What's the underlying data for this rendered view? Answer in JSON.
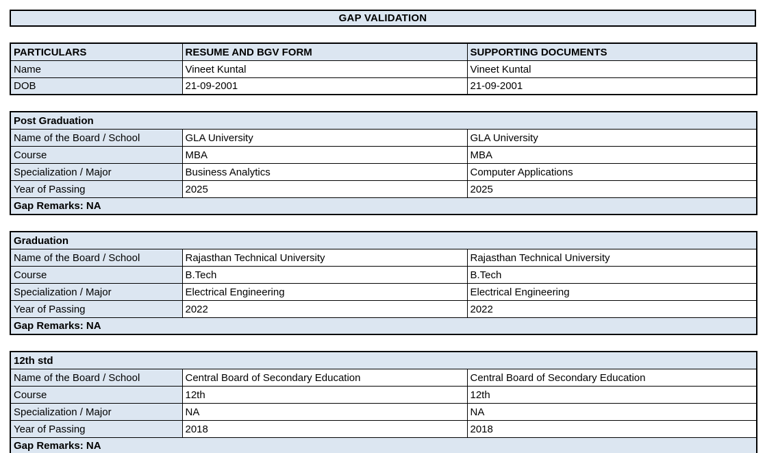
{
  "title": "GAP VALIDATION",
  "colors": {
    "shaded_cell_bg": "#dce6f1",
    "border": "#000000",
    "text": "#000000"
  },
  "main_table": {
    "columns": {
      "particulars": "PARTICULARS",
      "resume": "RESUME AND BGV FORM",
      "supporting": "SUPPORTING DOCUMENTS"
    },
    "rows": [
      {
        "label": "Name",
        "resume": "Vineet Kuntal",
        "supporting": "Vineet Kuntal"
      },
      {
        "label": "DOB",
        "resume": "21-09-2001",
        "supporting": "21-09-2001"
      }
    ]
  },
  "sections": [
    {
      "header": "Post Graduation",
      "rows": [
        {
          "label": "Name of the Board / School",
          "resume": "GLA University",
          "supporting": "GLA University"
        },
        {
          "label": "Course",
          "resume": "MBA",
          "supporting": "MBA"
        },
        {
          "label": "Specialization / Major",
          "resume": "Business Analytics",
          "supporting": "Computer Applications"
        },
        {
          "label": "Year of Passing",
          "resume": "2025",
          "supporting": "2025"
        }
      ],
      "gap_remarks": "Gap Remarks: NA"
    },
    {
      "header": "Graduation",
      "rows": [
        {
          "label": "Name of the Board / School",
          "resume": "Rajasthan Technical University",
          "supporting": "Rajasthan Technical University"
        },
        {
          "label": "Course",
          "resume": "B.Tech",
          "supporting": "B.Tech"
        },
        {
          "label": "Specialization / Major",
          "resume": "Electrical Engineering",
          "supporting": "Electrical Engineering"
        },
        {
          "label": "Year of Passing",
          "resume": "2022",
          "supporting": "2022"
        }
      ],
      "gap_remarks": "Gap Remarks: NA"
    },
    {
      "header": "12th std",
      "rows": [
        {
          "label": "Name of the Board / School",
          "resume": "Central Board of Secondary Education",
          "supporting": "Central Board of Secondary Education"
        },
        {
          "label": "Course",
          "resume": "12th",
          "supporting": "12th"
        },
        {
          "label": "Specialization / Major",
          "resume": "NA",
          "supporting": "NA"
        },
        {
          "label": "Year of Passing",
          "resume": "2018",
          "supporting": "2018"
        }
      ],
      "gap_remarks": "Gap Remarks: NA"
    }
  ]
}
